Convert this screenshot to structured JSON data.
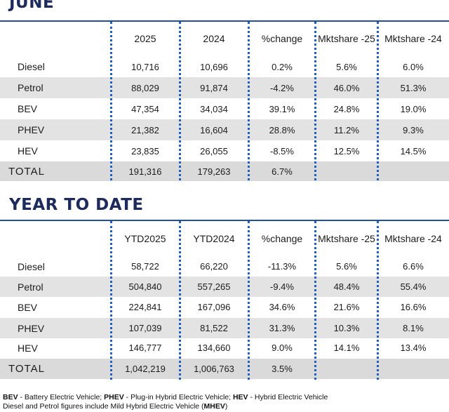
{
  "june": {
    "title": "JUNE",
    "headers": [
      {
        "l1": "",
        "l2": "2025"
      },
      {
        "l1": "",
        "l2": "2024"
      },
      {
        "l1": "%",
        "l2": "change"
      },
      {
        "l1": "Mkt",
        "l2": "share -25"
      },
      {
        "l1": "Mkt",
        "l2": "share -24"
      }
    ],
    "rows": [
      {
        "label": "Diesel",
        "v": [
          "10,716",
          "10,696",
          "0.2%",
          "5.6%",
          "6.0%"
        ]
      },
      {
        "label": "Petrol",
        "v": [
          "88,029",
          "91,874",
          "-4.2%",
          "46.0%",
          "51.3%"
        ]
      },
      {
        "label": "BEV",
        "v": [
          "47,354",
          "34,034",
          "39.1%",
          "24.8%",
          "19.0%"
        ]
      },
      {
        "label": "PHEV",
        "v": [
          "21,382",
          "16,604",
          "28.8%",
          "11.2%",
          "9.3%"
        ]
      },
      {
        "label": "HEV",
        "v": [
          "23,835",
          "26,055",
          "-8.5%",
          "12.5%",
          "14.5%"
        ]
      }
    ],
    "total": {
      "label": "TOTAL",
      "v": [
        "191,316",
        "179,263",
        "6.7%",
        "",
        ""
      ]
    }
  },
  "ytd": {
    "title": "YEAR TO DATE",
    "headers": [
      {
        "l1": "YTD",
        "l2": "2025"
      },
      {
        "l1": "YTD",
        "l2": "2024"
      },
      {
        "l1": "%",
        "l2": "change"
      },
      {
        "l1": "Mkt",
        "l2": "share -25"
      },
      {
        "l1": "Mkt",
        "l2": "share -24"
      }
    ],
    "rows": [
      {
        "label": "Diesel",
        "v": [
          "58,722",
          "66,220",
          "-11.3%",
          "5.6%",
          "6.6%"
        ]
      },
      {
        "label": "Petrol",
        "v": [
          "504,840",
          "557,265",
          "-9.4%",
          "48.4%",
          "55.4%"
        ]
      },
      {
        "label": "BEV",
        "v": [
          "224,841",
          "167,096",
          "34.6%",
          "21.6%",
          "16.6%"
        ]
      },
      {
        "label": "PHEV",
        "v": [
          "107,039",
          "81,522",
          "31.3%",
          "10.3%",
          "8.1%"
        ]
      },
      {
        "label": "HEV",
        "v": [
          "146,777",
          "134,660",
          "9.0%",
          "14.1%",
          "13.4%"
        ]
      }
    ],
    "total": {
      "label": "TOTAL",
      "v": [
        "1,042,219",
        "1,006,763",
        "3.5%",
        "",
        ""
      ]
    }
  },
  "footnote": {
    "line1": [
      {
        "b": "BEV",
        "t": " - Battery Electric Vehicle; "
      },
      {
        "b": "PHEV",
        "t": " - Plug-in Hybrid Electric Vehicle; "
      },
      {
        "b": "HEV",
        "t": " - Hybrid Electric Vehicle"
      }
    ],
    "line2_text": "Diesel and Petrol figures include Mild Hybrid Electric Vehicle (",
    "line2_bold": "MHEV",
    "line2_end": ")"
  },
  "colors": {
    "title": "#1d2a5c",
    "rule": "#1f4fa0",
    "dots": "#1f5fc0",
    "shade": "#e3e3e3"
  }
}
